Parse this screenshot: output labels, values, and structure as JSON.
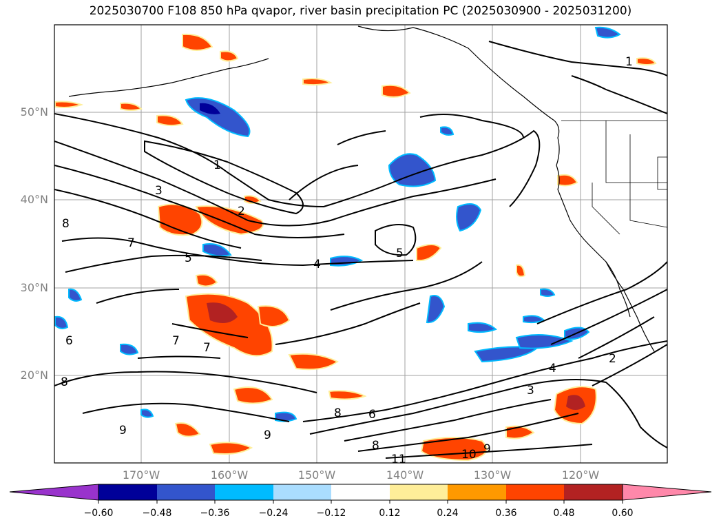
{
  "title": "2025030700 F108 850 hPa qvapor, river basin precipitation PC (2025030900 - 2025031200)",
  "map": {
    "lat_labels": [
      "50°N",
      "40°N",
      "30°N",
      "20°N"
    ],
    "lon_labels": [
      "170°W",
      "160°W",
      "150°W",
      "140°W",
      "130°W",
      "120°W"
    ],
    "grid_color": "#a0a0a0",
    "label_color": "#808080",
    "contour_labels": [
      "1",
      "1",
      "2",
      "2",
      "3",
      "3",
      "4",
      "4",
      "5",
      "5",
      "6",
      "6",
      "7",
      "7",
      "7",
      "8",
      "8",
      "8",
      "8",
      "9",
      "9",
      "9",
      "10",
      "11"
    ]
  },
  "colorbar": {
    "ticks": [
      "−0.60",
      "−0.48",
      "−0.36",
      "−0.24",
      "−0.12",
      "0.12",
      "0.24",
      "0.36",
      "0.48",
      "0.60"
    ],
    "colors": [
      "#9933cc",
      "#000099",
      "#3355cc",
      "#00bbff",
      "#aaddff",
      "#ffffff",
      "#ffee99",
      "#ff9900",
      "#ff4400",
      "#b22222",
      "#ff88aa"
    ]
  }
}
